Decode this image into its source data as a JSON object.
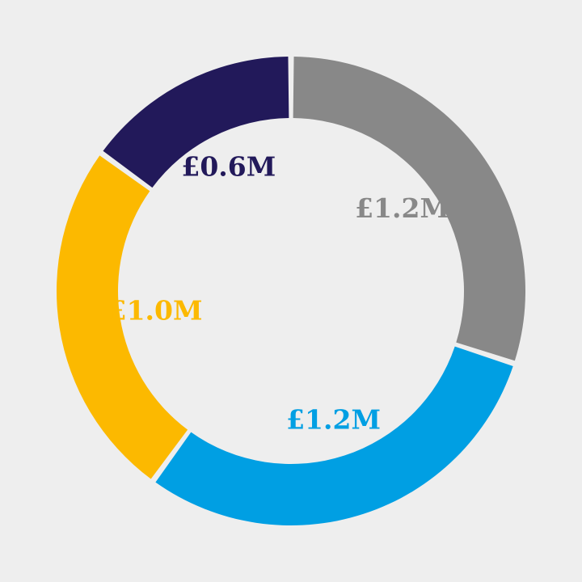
{
  "chart_data": {
    "type": "pie",
    "variant": "donut",
    "title": "",
    "legend": "none",
    "slices": [
      {
        "value": 1.2,
        "label": "£1.2M",
        "color": "#888888"
      },
      {
        "value": 1.2,
        "label": "£1.2M",
        "color": "#009fe3"
      },
      {
        "value": 1.0,
        "label": "£1.0M",
        "color": "#fcb900"
      },
      {
        "value": 0.6,
        "label": "£0.6M",
        "color": "#22195a"
      }
    ]
  }
}
